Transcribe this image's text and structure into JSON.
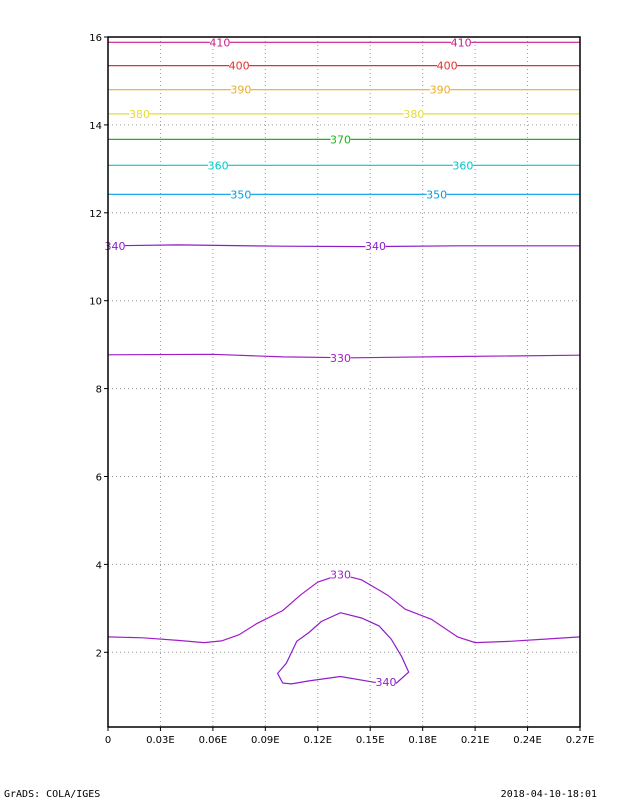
{
  "chart_data": {
    "type": "contour",
    "title": "",
    "xlabel": "",
    "ylabel": "",
    "xlim": [
      0,
      0.27
    ],
    "ylim": [
      0.3,
      16
    ],
    "grid": true,
    "x_ticks": [
      0,
      0.03,
      0.06,
      0.09,
      0.12,
      0.15,
      0.18,
      0.21,
      0.24,
      0.27
    ],
    "x_tick_labels": [
      "0",
      "0.03E",
      "0.06E",
      "0.09E",
      "0.12E",
      "0.15E",
      "0.18E",
      "0.21E",
      "0.24E",
      "0.27E"
    ],
    "y_ticks": [
      2,
      4,
      6,
      8,
      10,
      12,
      14,
      16
    ],
    "y_tick_labels": [
      "2",
      "4",
      "6",
      "8",
      "10",
      "12",
      "14",
      "16"
    ],
    "contours": [
      {
        "level": 410,
        "label": "410",
        "color": "#c81e8c",
        "points": [
          [
            0,
            15.88
          ],
          [
            0.27,
            15.88
          ]
        ],
        "label_positions": [
          [
            0.064,
            15.88
          ],
          [
            0.202,
            15.88
          ]
        ]
      },
      {
        "level": 400,
        "label": "400",
        "color": "#e03232",
        "points": [
          [
            0,
            15.35
          ],
          [
            0.27,
            15.35
          ]
        ],
        "label_positions": [
          [
            0.075,
            15.35
          ],
          [
            0.194,
            15.35
          ]
        ]
      },
      {
        "level": 390,
        "label": "390",
        "color": "#e6af2d",
        "points": [
          [
            0,
            14.8
          ],
          [
            0.27,
            14.8
          ]
        ],
        "label_positions": [
          [
            0.076,
            14.8
          ],
          [
            0.19,
            14.8
          ]
        ]
      },
      {
        "level": 380,
        "label": "380",
        "color": "#e6dc32",
        "points": [
          [
            0,
            14.25
          ],
          [
            0.27,
            14.25
          ]
        ],
        "label_positions": [
          [
            0.018,
            14.25
          ],
          [
            0.175,
            14.25
          ]
        ]
      },
      {
        "level": 370,
        "label": "370",
        "color": "#1eb41e",
        "points": [
          [
            0,
            13.67
          ],
          [
            0.27,
            13.67
          ]
        ],
        "label_positions": [
          [
            0.133,
            13.67
          ]
        ]
      },
      {
        "level": 360,
        "label": "360",
        "color": "#00c8c8",
        "points": [
          [
            0,
            13.08
          ],
          [
            0.27,
            13.08
          ]
        ],
        "label_positions": [
          [
            0.063,
            13.08
          ],
          [
            0.203,
            13.08
          ]
        ]
      },
      {
        "level": 350,
        "label": "350",
        "color": "#00a0e6",
        "points": [
          [
            0,
            12.42
          ],
          [
            0.27,
            12.42
          ]
        ],
        "label_positions": [
          [
            0.076,
            12.42
          ],
          [
            0.188,
            12.42
          ]
        ]
      },
      {
        "level": 340,
        "label": "340",
        "color": "#8c1ec8",
        "points": [
          [
            0,
            11.25
          ],
          [
            0.04,
            11.27
          ],
          [
            0.1,
            11.24
          ],
          [
            0.15,
            11.23
          ],
          [
            0.2,
            11.25
          ],
          [
            0.27,
            11.25
          ]
        ],
        "label_positions": [
          [
            0.004,
            11.25
          ],
          [
            0.153,
            11.24
          ]
        ]
      },
      {
        "level": 330,
        "label": "330",
        "color": "#a01ec8",
        "points": [
          [
            0,
            8.77
          ],
          [
            0.06,
            8.78
          ],
          [
            0.1,
            8.72
          ],
          [
            0.14,
            8.7
          ],
          [
            0.2,
            8.73
          ],
          [
            0.27,
            8.76
          ]
        ],
        "label_positions": [
          [
            0.133,
            8.7
          ]
        ]
      },
      {
        "level": 330,
        "label": "330",
        "color": "#a01ec8",
        "points": [
          [
            0,
            2.35
          ],
          [
            0.02,
            2.33
          ],
          [
            0.04,
            2.27
          ],
          [
            0.055,
            2.22
          ],
          [
            0.065,
            2.26
          ],
          [
            0.075,
            2.4
          ],
          [
            0.085,
            2.65
          ],
          [
            0.1,
            2.95
          ],
          [
            0.11,
            3.3
          ],
          [
            0.12,
            3.6
          ],
          [
            0.133,
            3.77
          ],
          [
            0.145,
            3.65
          ],
          [
            0.16,
            3.3
          ],
          [
            0.17,
            2.98
          ],
          [
            0.185,
            2.75
          ],
          [
            0.2,
            2.35
          ],
          [
            0.21,
            2.22
          ],
          [
            0.23,
            2.25
          ],
          [
            0.25,
            2.3
          ],
          [
            0.27,
            2.35
          ]
        ],
        "label_positions": [
          [
            0.133,
            3.77
          ]
        ]
      },
      {
        "level": 340,
        "label": "340",
        "color": "#8c1ec8",
        "closed": true,
        "points": [
          [
            0.1,
            1.3
          ],
          [
            0.097,
            1.52
          ],
          [
            0.102,
            1.75
          ],
          [
            0.108,
            2.25
          ],
          [
            0.115,
            2.45
          ],
          [
            0.122,
            2.7
          ],
          [
            0.133,
            2.9
          ],
          [
            0.145,
            2.78
          ],
          [
            0.155,
            2.6
          ],
          [
            0.162,
            2.3
          ],
          [
            0.168,
            1.9
          ],
          [
            0.172,
            1.55
          ],
          [
            0.165,
            1.3
          ],
          [
            0.152,
            1.32
          ],
          [
            0.133,
            1.45
          ],
          [
            0.115,
            1.35
          ],
          [
            0.105,
            1.28
          ]
        ],
        "label_positions": [
          [
            0.159,
            1.32
          ]
        ]
      }
    ]
  },
  "footer": {
    "left": "GrADS: COLA/IGES",
    "right": "2018-04-10-18:01"
  }
}
